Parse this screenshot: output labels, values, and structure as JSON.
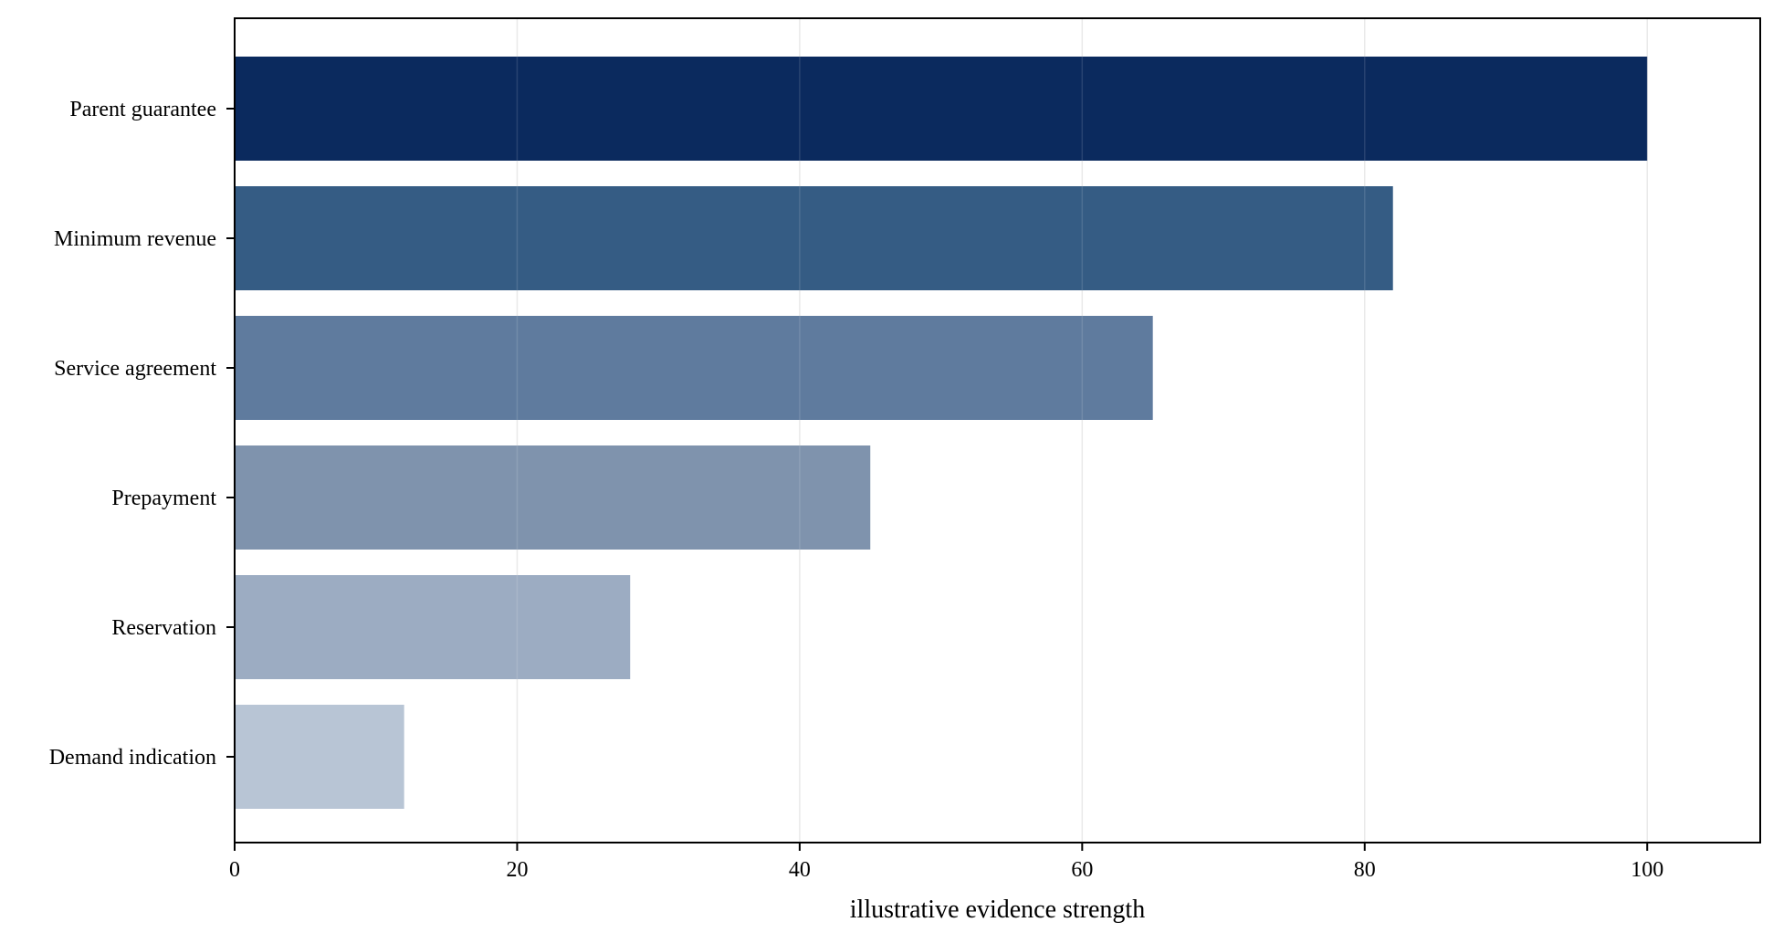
{
  "chart_data": {
    "type": "bar",
    "orientation": "horizontal",
    "categories": [
      "Parent guarantee",
      "Minimum revenue",
      "Service agreement",
      "Prepayment",
      "Reservation",
      "Demand indication"
    ],
    "values": [
      100,
      82,
      65,
      45,
      28,
      12
    ],
    "bar_colors": [
      "#0b2a5e",
      "#355c84",
      "#5f7b9e",
      "#7f93ad",
      "#9cacc2",
      "#b8c5d5"
    ],
    "xlabel": "illustrative evidence strength",
    "ylabel": "",
    "xlim": [
      0,
      108
    ],
    "xticks": [
      0,
      20,
      40,
      60,
      80,
      100
    ],
    "grid": "vertical",
    "legend": "none"
  }
}
